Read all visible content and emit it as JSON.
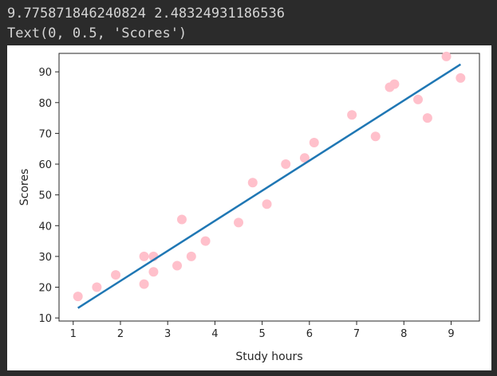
{
  "output": {
    "line1": "9.775871846240824 2.48324931186536",
    "line2": "Text(0, 0.5, 'Scores')"
  },
  "chart_data": {
    "type": "scatter",
    "xlabel": "Study hours",
    "ylabel": "Scores",
    "xlim": [
      0.7,
      9.6
    ],
    "ylim": [
      9,
      96
    ],
    "xticks": [
      1,
      2,
      3,
      4,
      5,
      6,
      7,
      8,
      9
    ],
    "yticks": [
      10,
      20,
      30,
      40,
      50,
      60,
      70,
      80,
      90
    ],
    "grid": false,
    "series": [
      {
        "kind": "scatter",
        "color": "#ffc0cb",
        "points": [
          [
            1.1,
            17
          ],
          [
            1.5,
            20
          ],
          [
            1.9,
            24
          ],
          [
            2.5,
            30
          ],
          [
            2.5,
            21
          ],
          [
            2.7,
            30
          ],
          [
            2.7,
            25
          ],
          [
            3.2,
            27
          ],
          [
            3.3,
            42
          ],
          [
            3.5,
            30
          ],
          [
            3.8,
            35
          ],
          [
            4.5,
            41
          ],
          [
            4.8,
            54
          ],
          [
            5.1,
            47
          ],
          [
            5.5,
            60
          ],
          [
            5.9,
            62
          ],
          [
            6.1,
            67
          ],
          [
            6.9,
            76
          ],
          [
            7.4,
            69
          ],
          [
            7.7,
            85
          ],
          [
            7.8,
            86
          ],
          [
            8.3,
            81
          ],
          [
            8.5,
            75
          ],
          [
            8.9,
            95
          ],
          [
            9.2,
            88
          ]
        ]
      },
      {
        "kind": "line",
        "color": "#1f77b4",
        "slope": 9.775871846240824,
        "intercept": 2.48324931186536,
        "x_range": [
          1.1,
          9.2
        ]
      }
    ]
  }
}
